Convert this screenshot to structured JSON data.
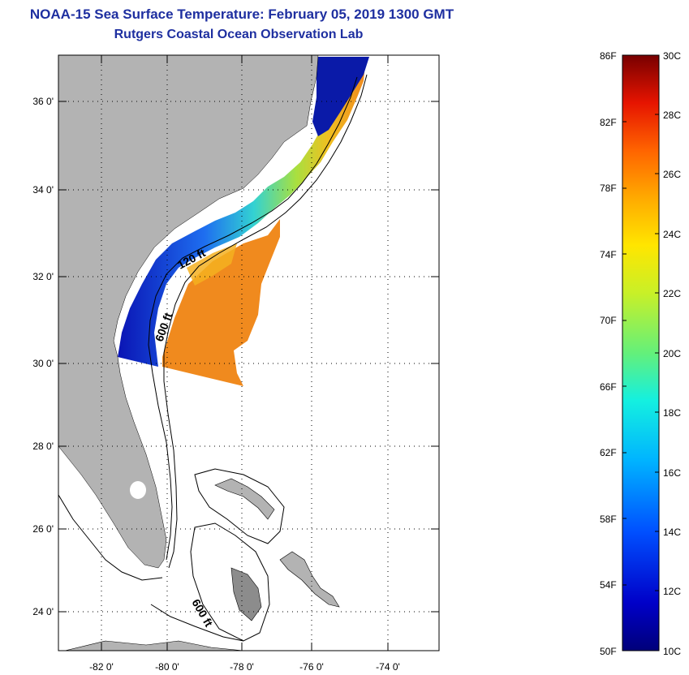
{
  "header": {
    "title": "NOAA-15 Sea Surface Temperature:  February 05, 2019 1300 GMT",
    "subtitle": "Rutgers Coastal Ocean Observation Lab"
  },
  "map": {
    "lat_ticks": [
      "36 0'",
      "34 0'",
      "32 0'",
      "30 0'",
      "28 0'",
      "26 0'",
      "24 0'"
    ],
    "lon_ticks": [
      "-82 0'",
      "-80 0'",
      "-78 0'",
      "-76 0'",
      "-74 0'"
    ],
    "contour_labels": [
      "120 ft",
      "600 ft",
      "600 ft"
    ]
  },
  "colorbar": {
    "fahrenheit": [
      "86F",
      "82F",
      "78F",
      "74F",
      "70F",
      "66F",
      "62F",
      "58F",
      "54F",
      "50F"
    ],
    "celsius": [
      "30C",
      "28C",
      "26C",
      "24C",
      "22C",
      "20C",
      "18C",
      "16C",
      "14C",
      "12C",
      "10C"
    ]
  },
  "colors": {
    "title": "#1e2fa0",
    "land": "#b3b3b3",
    "warm": "#f08a1e",
    "cold": "#0a1aa8"
  }
}
